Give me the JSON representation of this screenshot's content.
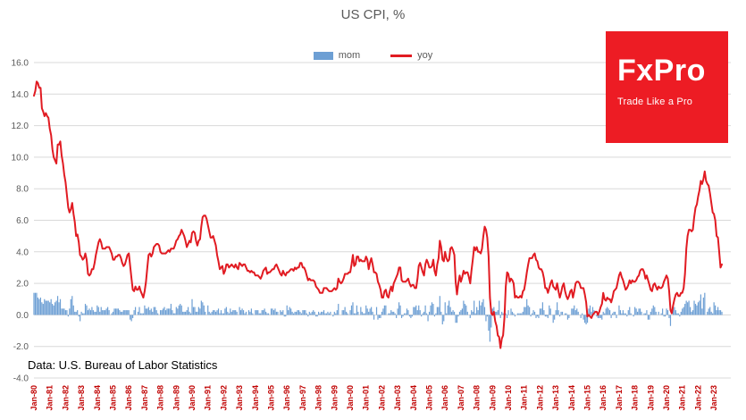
{
  "title": "US CPI, %",
  "legend": {
    "mom_label": "mom",
    "yoy_label": "yoy"
  },
  "source_note": "Data: U.S. Bureau of Labor Statistics",
  "logo": {
    "name": "FxPro",
    "tagline": "Trade Like a Pro"
  },
  "colors": {
    "bar": "#6d9fd4",
    "line": "#e11b22",
    "grid": "#d9d9d9",
    "y_tick_text": "#595959",
    "x_tick_text": "#c00000",
    "title_text": "#595959",
    "logo_bg": "#ed1c24"
  },
  "chart_data": {
    "type": "combo",
    "title": "US CPI, %",
    "xlabel": "",
    "ylabel": "",
    "ylim": [
      -4,
      16
    ],
    "grid": "horizontal",
    "legend_position": "top-center",
    "y_ticks": [
      16,
      14,
      12,
      10,
      8,
      6,
      4,
      2,
      0,
      -2,
      -4
    ],
    "x_tick_labels": [
      "Jan-80",
      "Jan-81",
      "Jan-82",
      "Jan-83",
      "Jan-84",
      "Jan-85",
      "Jan-86",
      "Jan-87",
      "Jan-88",
      "Jan-89",
      "Jan-90",
      "Jan-91",
      "Jan-92",
      "Jan-93",
      "Jan-94",
      "Jan-95",
      "Jan-96",
      "Jan-97",
      "Jan-98",
      "Jan-99",
      "Jan-00",
      "Jan-01",
      "Jan-02",
      "Jan-03",
      "Jan-04",
      "Jan-05",
      "Jan-06",
      "Jan-07",
      "Jan-08",
      "Jan-09",
      "Jan-10",
      "Jan-11",
      "Jan-12",
      "Jan-13",
      "Jan-14",
      "Jan-15",
      "Jan-16",
      "Jan-17",
      "Jan-18",
      "Jan-19",
      "Jan-20",
      "Jan-21",
      "Jan-22",
      "Jan-23"
    ],
    "x_start": "Jan-1980",
    "x_frequency": "monthly",
    "series": [
      {
        "name": "mom",
        "type": "bar",
        "values": [
          1.4,
          1.4,
          1.4,
          1.1,
          1.0,
          1.1,
          0.8,
          0.7,
          1.0,
          0.9,
          0.9,
          0.9,
          0.8,
          1.0,
          0.7,
          0.6,
          0.8,
          0.9,
          1.2,
          0.8,
          1.0,
          0.4,
          0.4,
          0.4,
          0.3,
          0.3,
          -0.1,
          0.4,
          1.0,
          1.2,
          0.6,
          0.2,
          0.2,
          0.3,
          -0.1,
          -0.4,
          0.2,
          0.1,
          0.1,
          0.7,
          0.6,
          0.3,
          0.4,
          0.3,
          0.5,
          0.3,
          0.2,
          0.2,
          0.6,
          0.5,
          0.2,
          0.5,
          0.3,
          0.3,
          0.3,
          0.4,
          0.5,
          0.3,
          0.0,
          0.1,
          0.2,
          0.4,
          0.4,
          0.4,
          0.4,
          0.3,
          0.2,
          0.2,
          0.3,
          0.3,
          0.3,
          0.3,
          0.3,
          -0.3,
          -0.4,
          -0.2,
          0.3,
          0.5,
          0.0,
          0.2,
          0.5,
          0.1,
          0.1,
          0.1,
          0.6,
          0.4,
          0.4,
          0.5,
          0.3,
          0.4,
          0.2,
          0.5,
          0.5,
          0.3,
          0.1,
          0.0,
          0.3,
          0.3,
          0.4,
          0.5,
          0.3,
          0.4,
          0.4,
          0.4,
          0.7,
          0.3,
          0.1,
          0.1,
          0.5,
          0.4,
          0.6,
          0.7,
          0.6,
          0.2,
          0.2,
          0.2,
          0.3,
          0.5,
          0.2,
          0.1,
          1.0,
          0.5,
          0.5,
          0.2,
          0.2,
          0.5,
          0.4,
          0.9,
          0.8,
          0.6,
          0.2,
          0.0,
          0.6,
          0.2,
          0.1,
          0.2,
          0.3,
          0.3,
          0.2,
          0.3,
          0.4,
          0.1,
          0.3,
          0.1,
          0.1,
          0.4,
          0.5,
          0.2,
          0.1,
          0.4,
          0.2,
          0.3,
          0.3,
          0.3,
          0.2,
          0.0,
          0.5,
          0.3,
          0.4,
          0.3,
          0.1,
          0.2,
          0.0,
          0.3,
          0.2,
          0.4,
          0.1,
          0.0,
          0.3,
          0.3,
          0.3,
          0.1,
          0.1,
          0.3,
          0.3,
          0.4,
          0.2,
          0.1,
          0.1,
          0.0,
          0.4,
          0.4,
          0.3,
          0.4,
          0.2,
          0.2,
          0.0,
          0.3,
          0.2,
          0.3,
          -0.1,
          -0.1,
          0.6,
          0.3,
          0.5,
          0.4,
          0.2,
          0.1,
          0.2,
          0.2,
          0.3,
          0.3,
          0.2,
          0.1,
          0.3,
          0.3,
          0.3,
          0.1,
          -0.1,
          0.2,
          0.1,
          0.2,
          0.3,
          0.2,
          -0.1,
          -0.1,
          0.2,
          0.1,
          0.2,
          0.2,
          0.3,
          0.1,
          0.1,
          0.2,
          0.1,
          0.2,
          0.0,
          -0.1,
          0.2,
          0.1,
          0.3,
          0.7,
          0.0,
          0.0,
          0.3,
          0.3,
          0.5,
          0.2,
          0.1,
          0.0,
          0.3,
          0.6,
          0.8,
          0.1,
          0.1,
          0.6,
          0.2,
          0.0,
          0.5,
          0.2,
          0.1,
          0.1,
          0.6,
          0.4,
          0.2,
          0.4,
          0.5,
          0.2,
          -0.3,
          0.0,
          0.5,
          -0.3,
          -0.2,
          -0.2,
          0.2,
          0.4,
          0.6,
          0.6,
          0.0,
          0.1,
          0.1,
          0.3,
          0.2,
          0.2,
          0.1,
          -0.2,
          0.4,
          0.8,
          0.6,
          -0.2,
          -0.1,
          0.1,
          0.1,
          0.4,
          0.3,
          -0.1,
          -0.2,
          -0.1,
          0.5,
          0.5,
          0.6,
          0.3,
          0.6,
          0.3,
          -0.1,
          0.1,
          0.2,
          0.6,
          0.1,
          -0.4,
          0.2,
          0.6,
          0.8,
          0.7,
          -0.1,
          0.1,
          0.5,
          0.5,
          1.2,
          0.2,
          -0.6,
          -0.4,
          0.8,
          0.1,
          0.6,
          0.9,
          0.5,
          0.2,
          0.3,
          0.2,
          -0.5,
          -0.5,
          -0.1,
          0.2,
          0.3,
          0.4,
          0.9,
          0.7,
          0.6,
          0.2,
          0.0,
          -0.2,
          0.3,
          0.2,
          0.9,
          0.1,
          0.5,
          0.3,
          0.9,
          0.6,
          0.8,
          1.0,
          0.5,
          -0.4,
          -0.1,
          -1.0,
          -1.7,
          -0.8,
          0.4,
          0.5,
          0.2,
          0.2,
          0.3,
          0.9,
          -0.2,
          0.2,
          0.1,
          0.1,
          0.1,
          -0.2,
          0.3,
          0.0,
          0.4,
          0.2,
          0.1,
          -0.1,
          0.0,
          0.1,
          0.1,
          0.1,
          0.1,
          0.2,
          0.5,
          0.5,
          1.0,
          0.6,
          0.5,
          -0.1,
          0.1,
          0.3,
          0.2,
          -0.2,
          -0.1,
          -0.2,
          0.4,
          0.4,
          0.8,
          0.3,
          -0.1,
          -0.1,
          -0.2,
          0.6,
          0.4,
          0.0,
          -0.5,
          -0.3,
          0.3,
          0.8,
          0.3,
          -0.1,
          0.2,
          0.2,
          0.0,
          0.1,
          0.1,
          -0.3,
          -0.2,
          0.0,
          0.4,
          0.4,
          0.6,
          0.3,
          0.4,
          0.2,
          0.0,
          -0.2,
          0.1,
          -0.3,
          -0.5,
          -0.6,
          -0.5,
          0.4,
          0.6,
          0.2,
          0.5,
          0.3,
          0.0,
          -0.1,
          -0.2,
          -0.2,
          -0.2,
          -0.3,
          0.2,
          0.1,
          0.4,
          0.5,
          0.4,
          0.3,
          -0.2,
          0.1,
          0.2,
          0.2,
          -0.2,
          0.0,
          0.6,
          0.3,
          0.1,
          0.3,
          0.1,
          0.1,
          -0.1,
          0.3,
          0.5,
          0.1,
          0.0,
          -0.1,
          0.5,
          0.4,
          0.2,
          0.4,
          0.4,
          0.2,
          0.0,
          0.1,
          0.1,
          0.3,
          -0.3,
          -0.3,
          0.2,
          0.4,
          0.6,
          0.5,
          0.2,
          0.0,
          0.2,
          0.0,
          0.1,
          0.4,
          -0.1,
          -0.1,
          0.4,
          0.3,
          -0.2,
          -0.7,
          0.0,
          0.5,
          0.5,
          0.3,
          0.1,
          0.1,
          -0.1,
          0.2,
          0.4,
          0.5,
          0.7,
          0.9,
          0.8,
          0.9,
          0.5,
          0.2,
          0.3,
          0.9,
          0.7,
          0.6,
          0.8,
          0.9,
          1.3,
          0.4,
          1.1,
          1.4,
          0.0,
          0.2,
          0.4,
          0.5,
          0.2,
          0.1,
          0.8,
          0.6,
          0.3,
          0.5,
          0.3,
          0.3,
          0.2
        ]
      },
      {
        "name": "yoy",
        "type": "line",
        "values": [
          13.9,
          14.2,
          14.8,
          14.7,
          14.4,
          14.4,
          13.1,
          12.9,
          12.6,
          12.8,
          12.6,
          12.5,
          11.8,
          11.4,
          10.5,
          10.0,
          9.8,
          9.6,
          10.8,
          10.8,
          11.0,
          10.1,
          9.6,
          8.9,
          8.4,
          7.6,
          6.8,
          6.5,
          6.7,
          7.1,
          6.4,
          5.9,
          5.0,
          5.1,
          4.6,
          3.8,
          3.7,
          3.5,
          3.6,
          3.9,
          3.5,
          2.6,
          2.5,
          2.6,
          2.9,
          2.9,
          3.3,
          3.8,
          4.2,
          4.6,
          4.8,
          4.6,
          4.2,
          4.2,
          4.2,
          4.3,
          4.3,
          4.3,
          4.1,
          3.9,
          3.5,
          3.5,
          3.7,
          3.7,
          3.8,
          3.8,
          3.6,
          3.3,
          3.1,
          3.2,
          3.5,
          3.8,
          3.9,
          3.1,
          2.3,
          1.6,
          1.5,
          1.8,
          1.6,
          1.6,
          1.8,
          1.5,
          1.3,
          1.1,
          1.5,
          2.1,
          3.0,
          3.8,
          3.9,
          3.7,
          3.9,
          4.3,
          4.4,
          4.5,
          4.5,
          4.4,
          4.0,
          3.9,
          3.9,
          3.9,
          3.9,
          4.0,
          4.1,
          4.0,
          4.2,
          4.2,
          4.2,
          4.4,
          4.7,
          4.8,
          5.0,
          5.1,
          5.4,
          5.2,
          5.0,
          4.7,
          4.3,
          4.5,
          4.7,
          4.6,
          5.2,
          5.3,
          5.2,
          4.7,
          4.4,
          4.7,
          4.8,
          5.6,
          6.2,
          6.3,
          6.3,
          6.1,
          5.7,
          5.3,
          4.9,
          4.9,
          5.0,
          4.7,
          4.4,
          3.8,
          3.4,
          2.9,
          3.0,
          3.1,
          2.6,
          2.8,
          3.2,
          3.2,
          3.0,
          3.1,
          3.2,
          3.1,
          3.0,
          3.2,
          3.0,
          2.9,
          3.3,
          3.2,
          3.1,
          3.2,
          3.2,
          3.0,
          2.8,
          2.8,
          2.7,
          2.8,
          2.7,
          2.7,
          2.5,
          2.5,
          2.5,
          2.4,
          2.3,
          2.5,
          2.8,
          2.9,
          3.0,
          2.6,
          2.7,
          2.7,
          2.8,
          2.9,
          2.9,
          3.1,
          3.2,
          3.0,
          2.8,
          2.6,
          2.5,
          2.8,
          2.6,
          2.5,
          2.7,
          2.7,
          2.8,
          2.9,
          2.9,
          2.8,
          3.0,
          2.9,
          3.0,
          3.0,
          3.3,
          3.3,
          3.0,
          3.0,
          2.8,
          2.5,
          2.2,
          2.3,
          2.2,
          2.2,
          2.2,
          2.1,
          1.8,
          1.7,
          1.6,
          1.4,
          1.4,
          1.4,
          1.7,
          1.7,
          1.7,
          1.6,
          1.5,
          1.5,
          1.5,
          1.6,
          1.7,
          1.6,
          1.7,
          2.3,
          2.1,
          2.0,
          2.1,
          2.3,
          2.6,
          2.6,
          2.6,
          2.7,
          2.7,
          3.2,
          3.8,
          3.1,
          3.2,
          3.7,
          3.7,
          3.4,
          3.5,
          3.4,
          3.4,
          3.4,
          3.7,
          3.5,
          2.9,
          3.3,
          3.6,
          3.2,
          2.7,
          2.7,
          2.6,
          2.1,
          1.9,
          1.6,
          1.1,
          1.1,
          1.5,
          1.6,
          1.2,
          1.1,
          1.5,
          1.8,
          1.5,
          2.0,
          2.2,
          2.4,
          2.6,
          3.0,
          3.0,
          2.2,
          2.1,
          2.1,
          2.1,
          2.2,
          2.3,
          2.0,
          1.8,
          1.9,
          1.9,
          1.7,
          1.7,
          2.3,
          3.1,
          3.3,
          3.0,
          2.7,
          2.5,
          3.2,
          3.5,
          3.3,
          3.0,
          3.0,
          3.1,
          3.5,
          2.8,
          2.5,
          3.2,
          3.6,
          4.7,
          4.3,
          3.5,
          3.4,
          4.0,
          3.6,
          3.4,
          3.5,
          4.2,
          4.3,
          4.1,
          3.8,
          2.1,
          1.3,
          2.0,
          2.5,
          2.1,
          2.4,
          2.8,
          2.6,
          2.7,
          2.7,
          2.4,
          2.0,
          2.8,
          3.5,
          4.3,
          4.1,
          4.3,
          4.0,
          4.0,
          3.9,
          4.2,
          5.0,
          5.6,
          5.4,
          4.9,
          3.7,
          1.1,
          0.1,
          0.0,
          0.2,
          -0.4,
          -0.7,
          -1.3,
          -1.4,
          -2.1,
          -1.5,
          -1.3,
          -0.2,
          1.8,
          2.7,
          2.6,
          2.1,
          2.3,
          2.2,
          2.0,
          1.1,
          1.2,
          1.1,
          1.1,
          1.2,
          1.1,
          1.5,
          1.6,
          2.1,
          2.7,
          3.2,
          3.6,
          3.6,
          3.6,
          3.8,
          3.9,
          3.5,
          3.4,
          3.0,
          2.9,
          2.9,
          2.7,
          2.3,
          1.7,
          1.7,
          1.4,
          1.7,
          2.0,
          2.2,
          1.8,
          1.7,
          1.6,
          2.0,
          1.5,
          1.1,
          1.4,
          1.8,
          2.0,
          1.5,
          1.2,
          1.0,
          1.2,
          1.5,
          1.6,
          1.1,
          1.5,
          2.0,
          2.1,
          2.1,
          2.0,
          1.7,
          1.7,
          1.7,
          1.3,
          0.8,
          -0.1,
          0.0,
          -0.1,
          -0.2,
          0.0,
          0.1,
          0.2,
          0.2,
          0.0,
          0.2,
          0.5,
          0.7,
          1.4,
          1.0,
          0.9,
          1.1,
          1.0,
          1.0,
          0.8,
          1.1,
          1.5,
          1.6,
          1.7,
          2.1,
          2.5,
          2.7,
          2.4,
          2.2,
          1.9,
          1.6,
          1.7,
          1.9,
          2.2,
          2.0,
          2.2,
          2.1,
          2.1,
          2.2,
          2.4,
          2.5,
          2.8,
          2.9,
          2.9,
          2.7,
          2.3,
          2.5,
          2.2,
          1.9,
          1.6,
          1.5,
          1.9,
          2.0,
          1.8,
          1.6,
          1.8,
          1.7,
          1.7,
          1.8,
          2.1,
          2.3,
          2.5,
          2.3,
          1.5,
          0.3,
          0.1,
          0.6,
          1.0,
          1.3,
          1.4,
          1.2,
          1.2,
          1.4,
          1.4,
          1.7,
          2.6,
          4.2,
          5.0,
          5.4,
          5.4,
          5.3,
          5.4,
          6.2,
          6.8,
          7.0,
          7.5,
          7.9,
          8.5,
          8.3,
          8.6,
          9.1,
          8.5,
          8.3,
          8.2,
          7.7,
          7.1,
          6.5,
          6.4,
          6.0,
          5.0,
          4.9,
          4.0,
          3.0,
          3.2
        ]
      }
    ]
  }
}
